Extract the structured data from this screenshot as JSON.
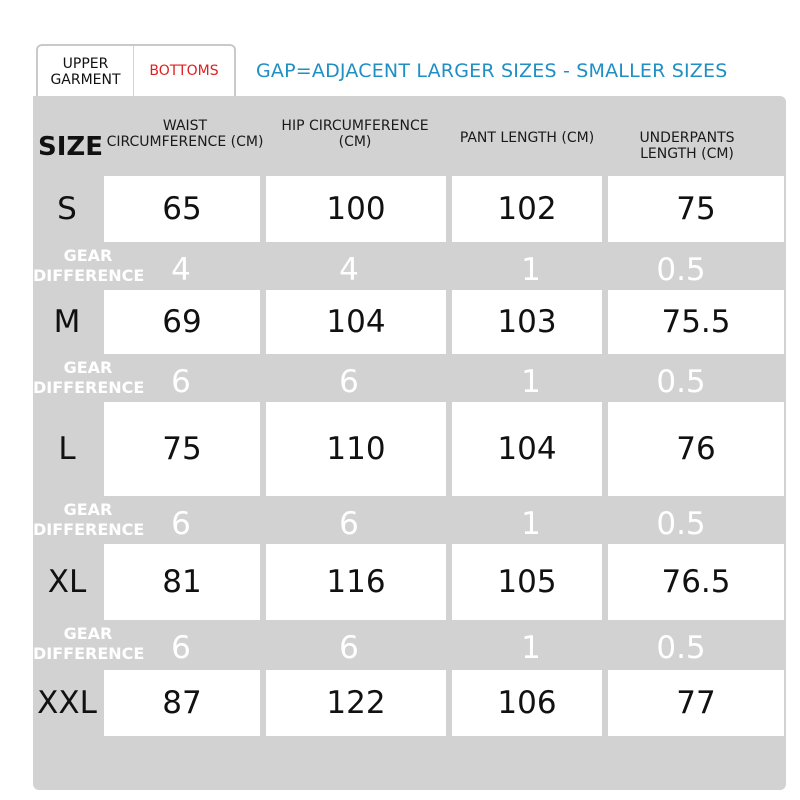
{
  "tabs": {
    "upper": "UPPER\nGARMENT",
    "bottoms": "BOTTOMS"
  },
  "gap_note": "GAP=ADJACENT LARGER SIZES - SMALLER SIZES",
  "headers": {
    "size": "SIZE",
    "waist": "WAIST CIRCUMFERENCE (CM)",
    "hip": "HIP CIRCUMFERENCE (CM)",
    "pant": "PANT LENGTH (CM)",
    "under": "UNDERPANTS LENGTH (CM)"
  },
  "rows": [
    {
      "size": "S",
      "waist": "65",
      "hip": "100",
      "pant": "102",
      "under": "75"
    },
    {
      "size": "M",
      "waist": "69",
      "hip": "104",
      "pant": "103",
      "under": "75.5"
    },
    {
      "size": "L",
      "waist": "75",
      "hip": "110",
      "pant": "104",
      "under": "76"
    },
    {
      "size": "XL",
      "waist": "81",
      "hip": "116",
      "pant": "105",
      "under": "76.5"
    },
    {
      "size": "XXL",
      "waist": "87",
      "hip": "122",
      "pant": "106",
      "under": "77"
    }
  ],
  "gear_label": "GEAR DIFFERENCE",
  "gears": [
    {
      "waist": "4",
      "hip": "4",
      "pant": "1",
      "under": "0.5"
    },
    {
      "waist": "6",
      "hip": "6",
      "pant": "1",
      "under": "0.5"
    },
    {
      "waist": "6",
      "hip": "6",
      "pant": "1",
      "under": "0.5"
    },
    {
      "waist": "6",
      "hip": "6",
      "pant": "1",
      "under": "0.5"
    }
  ],
  "colors": {
    "accent_blue": "#1f8fc4",
    "tab_red": "#e02020",
    "panel_gray": "#d2d2d2"
  }
}
